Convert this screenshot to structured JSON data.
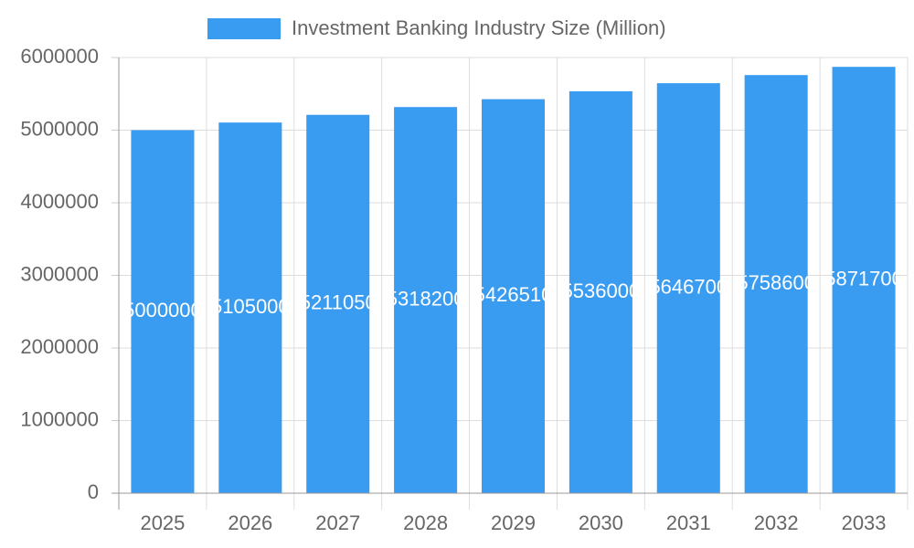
{
  "chart_data": {
    "type": "bar",
    "legend": "Investment Banking Industry Size (Million)",
    "categories": [
      "2025",
      "2026",
      "2027",
      "2028",
      "2029",
      "2030",
      "2031",
      "2032",
      "2033"
    ],
    "values": [
      5000000,
      5105000,
      5211050,
      5318200,
      5426510,
      5536000,
      5646700,
      5758600,
      5871700
    ],
    "color": "#3a9cf0",
    "ylim": [
      0,
      6000000
    ],
    "yticks": [
      0,
      1000000,
      2000000,
      3000000,
      4000000,
      5000000,
      6000000
    ],
    "grid": true
  }
}
